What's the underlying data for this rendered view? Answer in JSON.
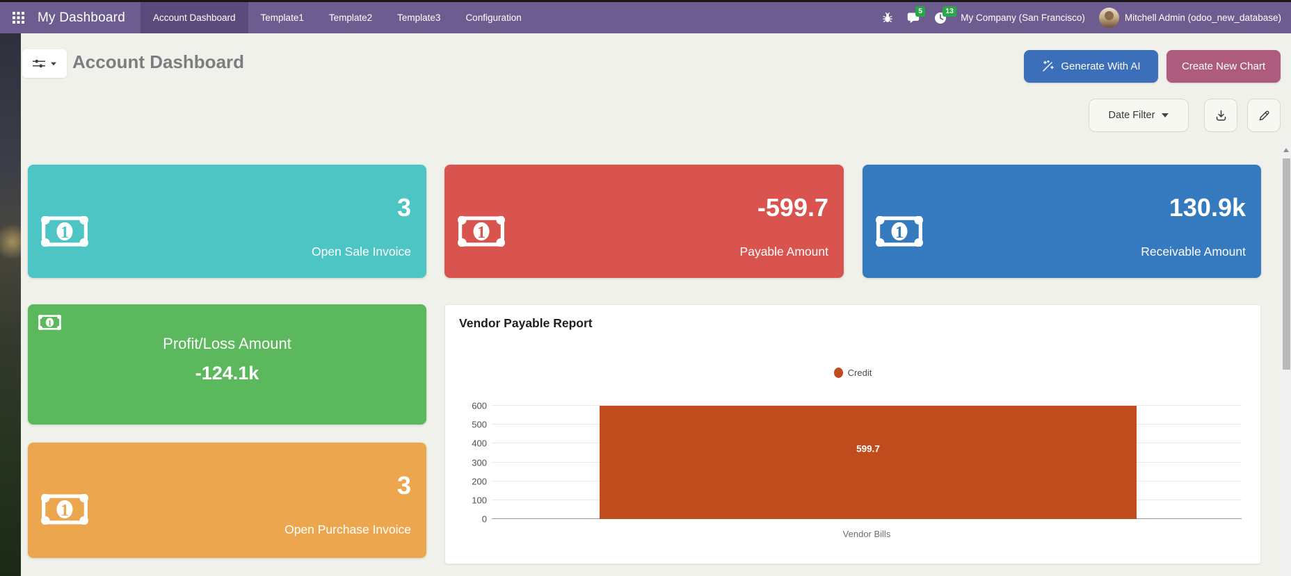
{
  "navbar": {
    "brand": "My Dashboard",
    "menu": [
      "Account Dashboard",
      "Template1",
      "Template2",
      "Template3",
      "Configuration"
    ],
    "active_menu": "Account Dashboard",
    "systray": {
      "messages_badge": "5",
      "activities_badge": "13",
      "company": "My Company (San Francisco)",
      "user": "Mitchell Admin (odoo_new_database)"
    },
    "colors": {
      "bg": "#6d5c8f",
      "active_bg": "#5b4b7c",
      "badge": "#29a847"
    }
  },
  "control_panel": {
    "title": "Account Dashboard",
    "generate_button": "Generate With AI",
    "create_button": "Create New Chart",
    "date_filter_button": "Date Filter",
    "colors": {
      "generate": "#3b6fba",
      "create": "#ad5c7e"
    }
  },
  "icons": {
    "apps": "grid-3x3",
    "bug": "bug",
    "messages": "chat-bubble",
    "activities": "clock",
    "filter": "sliders",
    "caret": "caret-down",
    "ai": "magic-wand",
    "download": "download-arrow",
    "edit": "pencil",
    "money": "banknote-1",
    "legend": "circle-dot",
    "scroll_up": "triangle-up"
  },
  "kpi_cards": [
    {
      "name": "open-sale-invoice",
      "value": "3",
      "label": "Open Sale Invoice",
      "color": "#4cc5c4"
    },
    {
      "name": "payable-amount",
      "value": "-599.7",
      "label": "Payable Amount",
      "color": "#d9534f"
    },
    {
      "name": "receivable-amount",
      "value": "130.9k",
      "label": "Receivable Amount",
      "color": "#3579be"
    },
    {
      "name": "profit-loss-amount",
      "value": "-124.1k",
      "label": "Profit/Loss Amount",
      "color": "#5cb85c"
    },
    {
      "name": "open-purchase-invoice",
      "value": "3",
      "label": "Open Purchase Invoice",
      "color": "#eca64e"
    }
  ],
  "chart_data": {
    "type": "bar",
    "title": "Vendor Payable Report",
    "categories": [
      "Vendor Bills"
    ],
    "series": [
      {
        "name": "Credit",
        "values": [
          599.7
        ],
        "color": "#c04c1d"
      }
    ],
    "data_labels": [
      "599.7"
    ],
    "xlabel": "Vendor Bills",
    "ylabel": "",
    "ylim": [
      0,
      600
    ],
    "yticks": [
      0,
      100,
      200,
      300,
      400,
      500,
      600
    ],
    "grid": true,
    "legend": {
      "position": "top-center",
      "entries": [
        {
          "label": "Credit",
          "color": "#c04c1d"
        }
      ]
    }
  }
}
